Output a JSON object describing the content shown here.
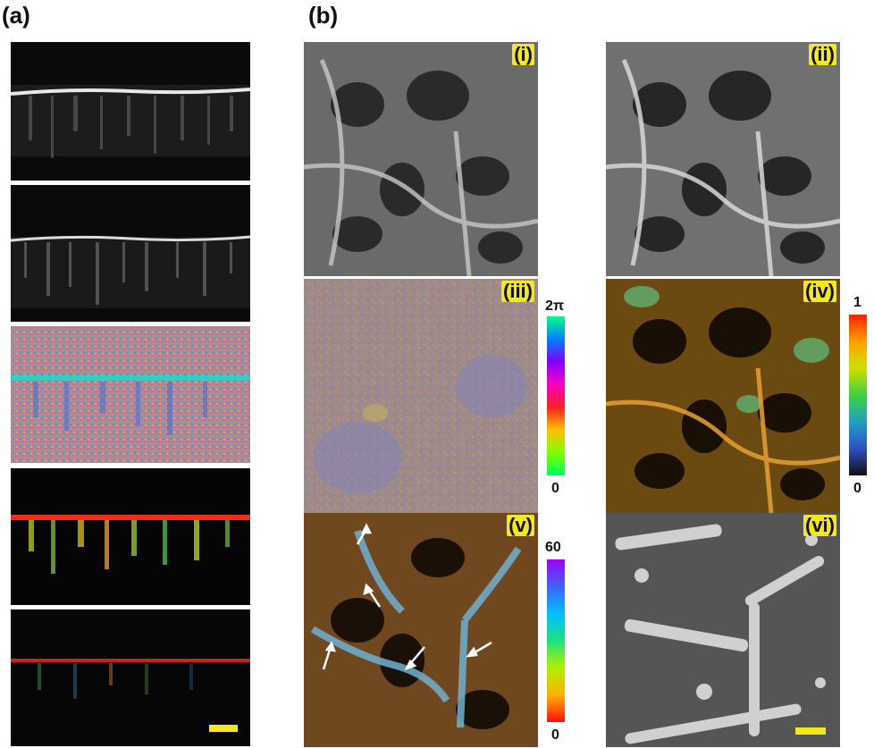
{
  "figure": {
    "label_a": "(a)",
    "label_b": "(b)",
    "sublabels": [
      "(i)",
      "(ii)",
      "(iii)",
      "(iv)",
      "(v)",
      "(vi)"
    ],
    "colorbars": {
      "phase": {
        "max": "2π",
        "min": "0",
        "colors": [
          "#00ff80",
          "#0080ff",
          "#8000ff",
          "#ff00c0",
          "#ff2020",
          "#ffc000",
          "#80ff00",
          "#00ff60"
        ]
      },
      "ratio": {
        "max": "1",
        "min": "0",
        "colors": [
          "#ff2000",
          "#ffa000",
          "#d0e000",
          "#40d040",
          "#20a0c0",
          "#3050c0",
          "#101010"
        ]
      },
      "angle": {
        "max": "60",
        "min": "0",
        "colors": [
          "#a000ff",
          "#4060ff",
          "#00c0ff",
          "#20e080",
          "#b0f000",
          "#ffb000",
          "#ff1010"
        ]
      }
    },
    "colors": {
      "scale_bar": "#f4e81c",
      "label_bg": "#f4e81c"
    }
  }
}
